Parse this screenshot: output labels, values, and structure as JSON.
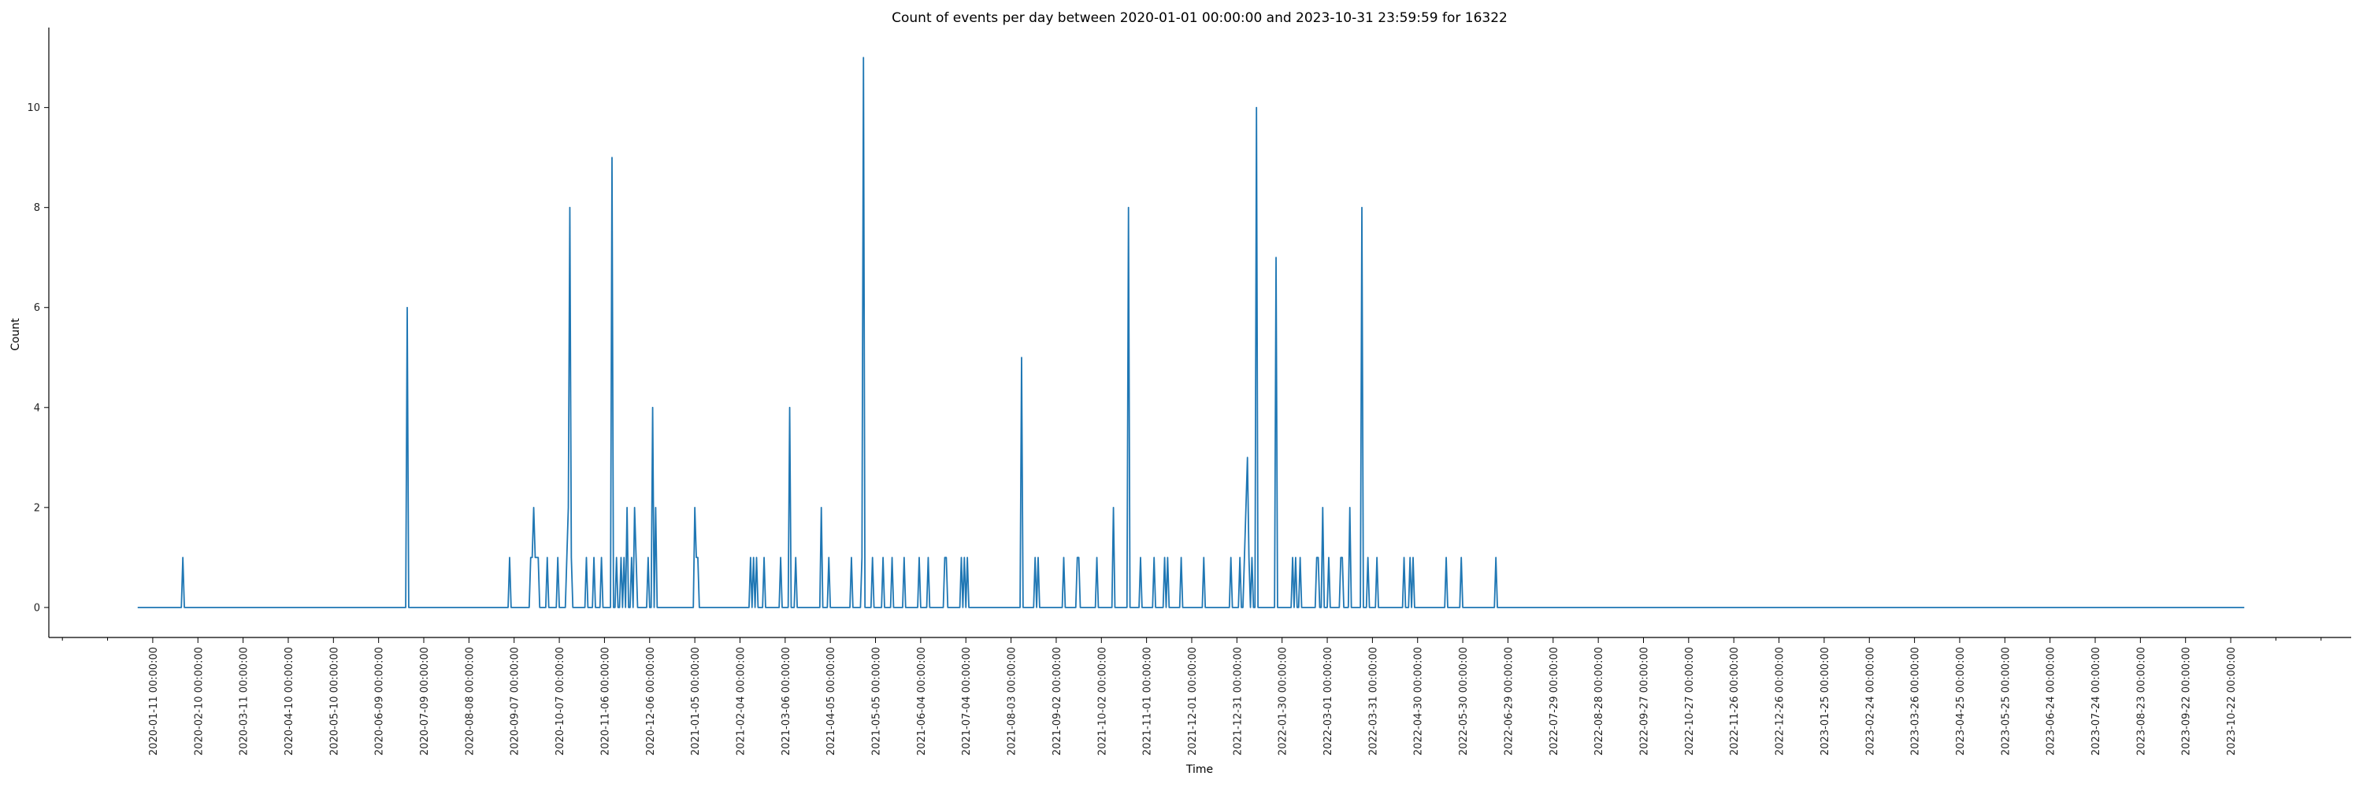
{
  "chart_data": {
    "type": "line",
    "title": "Count of events per day between 2020-01-01 00:00:00 and 2023-10-31 23:59:59 for 16322",
    "xlabel": "Time",
    "ylabel": "Count",
    "x_range": [
      "2020-01-01",
      "2023-10-31"
    ],
    "xlim": [
      "2019-11-03",
      "2024-01-10"
    ],
    "ylim": [
      -0.6,
      11.6
    ],
    "y_ticks": [
      0,
      2,
      4,
      6,
      8,
      10
    ],
    "x_tick_labels": [
      "2020-01-11 00:00:00",
      "2020-02-10 00:00:00",
      "2020-03-11 00:00:00",
      "2020-04-10 00:00:00",
      "2020-05-10 00:00:00",
      "2020-06-09 00:00:00",
      "2020-07-09 00:00:00",
      "2020-08-08 00:00:00",
      "2020-09-07 00:00:00",
      "2020-10-07 00:00:00",
      "2020-11-06 00:00:00",
      "2020-12-06 00:00:00",
      "2021-01-05 00:00:00",
      "2021-02-04 00:00:00",
      "2021-03-06 00:00:00",
      "2021-04-05 00:00:00",
      "2021-05-05 00:00:00",
      "2021-06-04 00:00:00",
      "2021-07-04 00:00:00",
      "2021-08-03 00:00:00",
      "2021-09-02 00:00:00",
      "2021-10-02 00:00:00",
      "2021-11-01 00:00:00",
      "2021-12-01 00:00:00",
      "2021-12-31 00:00:00",
      "2022-01-30 00:00:00",
      "2022-03-01 00:00:00",
      "2022-03-31 00:00:00",
      "2022-04-30 00:00:00",
      "2022-05-30 00:00:00",
      "2022-06-29 00:00:00",
      "2022-07-29 00:00:00",
      "2022-08-28 00:00:00",
      "2022-09-27 00:00:00",
      "2022-10-27 00:00:00",
      "2022-11-26 00:00:00",
      "2022-12-26 00:00:00",
      "2023-01-25 00:00:00",
      "2023-02-24 00:00:00",
      "2023-03-26 00:00:00",
      "2023-04-25 00:00:00",
      "2023-05-25 00:00:00",
      "2023-06-24 00:00:00",
      "2023-07-24 00:00:00",
      "2023-08-23 00:00:00",
      "2023-09-22 00:00:00",
      "2023-10-22 00:00:00"
    ],
    "series": [
      {
        "color": "#1f77b4",
        "baseline": 0,
        "points": [
          [
            "2020-01-31",
            1
          ],
          [
            "2020-06-28",
            6
          ],
          [
            "2020-09-04",
            1
          ],
          [
            "2020-09-18",
            1
          ],
          [
            "2020-09-19",
            1
          ],
          [
            "2020-09-20",
            2
          ],
          [
            "2020-09-21",
            1
          ],
          [
            "2020-09-22",
            1
          ],
          [
            "2020-09-23",
            1
          ],
          [
            "2020-09-29",
            1
          ],
          [
            "2020-10-06",
            1
          ],
          [
            "2020-10-12",
            1
          ],
          [
            "2020-10-13",
            2
          ],
          [
            "2020-10-14",
            8
          ],
          [
            "2020-10-15",
            1
          ],
          [
            "2020-10-25",
            1
          ],
          [
            "2020-10-30",
            1
          ],
          [
            "2020-11-04",
            1
          ],
          [
            "2020-11-11",
            9
          ],
          [
            "2020-11-14",
            1
          ],
          [
            "2020-11-17",
            1
          ],
          [
            "2020-11-19",
            1
          ],
          [
            "2020-11-21",
            2
          ],
          [
            "2020-11-24",
            1
          ],
          [
            "2020-11-26",
            2
          ],
          [
            "2020-11-27",
            1
          ],
          [
            "2020-12-05",
            1
          ],
          [
            "2020-12-08",
            4
          ],
          [
            "2020-12-10",
            2
          ],
          [
            "2021-01-05",
            2
          ],
          [
            "2021-01-06",
            1
          ],
          [
            "2021-01-07",
            1
          ],
          [
            "2021-02-11",
            1
          ],
          [
            "2021-02-13",
            1
          ],
          [
            "2021-02-15",
            1
          ],
          [
            "2021-02-20",
            1
          ],
          [
            "2021-03-03",
            1
          ],
          [
            "2021-03-09",
            4
          ],
          [
            "2021-03-13",
            1
          ],
          [
            "2021-03-30",
            2
          ],
          [
            "2021-04-04",
            1
          ],
          [
            "2021-04-19",
            1
          ],
          [
            "2021-04-26",
            1
          ],
          [
            "2021-04-27",
            11
          ],
          [
            "2021-05-03",
            1
          ],
          [
            "2021-05-10",
            1
          ],
          [
            "2021-05-16",
            1
          ],
          [
            "2021-05-24",
            1
          ],
          [
            "2021-06-03",
            1
          ],
          [
            "2021-06-09",
            1
          ],
          [
            "2021-06-20",
            1
          ],
          [
            "2021-06-21",
            1
          ],
          [
            "2021-07-01",
            1
          ],
          [
            "2021-07-03",
            1
          ],
          [
            "2021-07-05",
            1
          ],
          [
            "2021-08-10",
            5
          ],
          [
            "2021-08-19",
            1
          ],
          [
            "2021-08-21",
            1
          ],
          [
            "2021-09-07",
            1
          ],
          [
            "2021-09-16",
            1
          ],
          [
            "2021-09-17",
            1
          ],
          [
            "2021-09-29",
            1
          ],
          [
            "2021-10-10",
            2
          ],
          [
            "2021-10-20",
            8
          ],
          [
            "2021-10-28",
            1
          ],
          [
            "2021-11-06",
            1
          ],
          [
            "2021-11-13",
            1
          ],
          [
            "2021-11-15",
            1
          ],
          [
            "2021-11-24",
            1
          ],
          [
            "2021-12-09",
            1
          ],
          [
            "2021-12-27",
            1
          ],
          [
            "2022-01-02",
            1
          ],
          [
            "2022-01-05",
            1
          ],
          [
            "2022-01-06",
            2
          ],
          [
            "2022-01-07",
            3
          ],
          [
            "2022-01-08",
            1
          ],
          [
            "2022-01-10",
            1
          ],
          [
            "2022-01-13",
            10
          ],
          [
            "2022-01-26",
            7
          ],
          [
            "2022-02-06",
            1
          ],
          [
            "2022-02-08",
            1
          ],
          [
            "2022-02-11",
            1
          ],
          [
            "2022-02-22",
            1
          ],
          [
            "2022-02-23",
            1
          ],
          [
            "2022-02-26",
            2
          ],
          [
            "2022-03-02",
            1
          ],
          [
            "2022-03-10",
            1
          ],
          [
            "2022-03-11",
            1
          ],
          [
            "2022-03-16",
            2
          ],
          [
            "2022-03-24",
            8
          ],
          [
            "2022-03-28",
            1
          ],
          [
            "2022-04-03",
            1
          ],
          [
            "2022-04-21",
            1
          ],
          [
            "2022-04-25",
            1
          ],
          [
            "2022-04-27",
            1
          ],
          [
            "2022-05-19",
            1
          ],
          [
            "2022-05-29",
            1
          ],
          [
            "2022-06-21",
            1
          ]
        ]
      }
    ]
  }
}
